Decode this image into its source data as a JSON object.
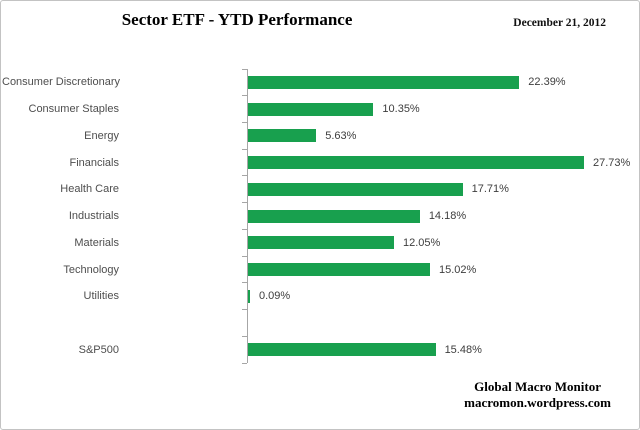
{
  "header": {
    "title": "Sector ETF - YTD Performance",
    "date": "December 21, 2012"
  },
  "footer": {
    "line1": "Global Macro Monitor",
    "line2": "macromon.wordpress.com"
  },
  "colors": {
    "bar_green": "#18A04E",
    "axis_gray": "#A6A6A6",
    "category_label_gray": "#4E4E4E",
    "value_label_gray": "#3D3D3D"
  },
  "chart_data": {
    "type": "bar",
    "orientation": "horizontal",
    "title": "Sector ETF - YTD Performance",
    "xlabel": "",
    "ylabel": "",
    "xlim": [
      0,
      30
    ],
    "grid": false,
    "legend": false,
    "value_format": "percent",
    "categories": [
      "Consumer Discretionary",
      "Consumer Staples",
      "Energy",
      "Financials",
      "Health Care",
      "Industrials",
      "Materials",
      "Technology",
      "Utilities",
      "",
      "S&P500"
    ],
    "values": [
      22.39,
      10.35,
      5.63,
      27.73,
      17.71,
      14.18,
      12.05,
      15.02,
      0.09,
      null,
      15.48
    ],
    "value_labels": [
      "22.39%",
      "10.35%",
      "5.63%",
      "27.73%",
      "17.71%",
      "14.18%",
      "12.05%",
      "15.02%",
      "0.09%",
      null,
      "15.48%"
    ]
  }
}
